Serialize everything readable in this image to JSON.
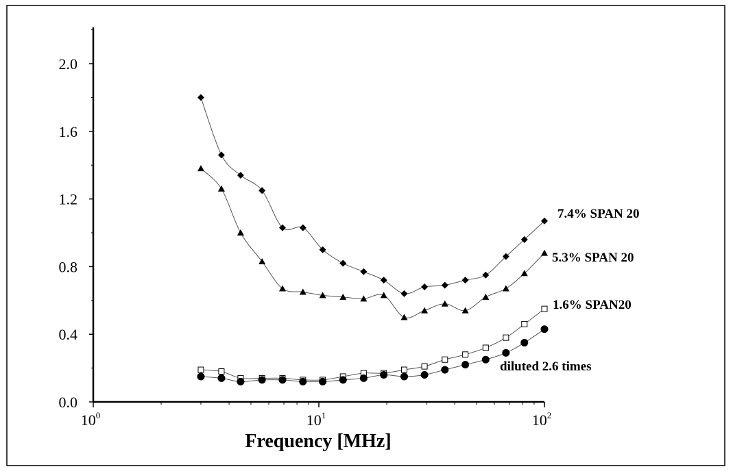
{
  "chart_data": {
    "type": "line",
    "xscale": "log",
    "xlim": [
      1,
      100
    ],
    "ylim": [
      0,
      2.2
    ],
    "xlabel": "Frequency [MHz]",
    "ylabel": "",
    "x_ticks": [
      {
        "base": "10",
        "exp": "0",
        "value": 1
      },
      {
        "base": "10",
        "exp": "1",
        "value": 10
      },
      {
        "base": "10",
        "exp": "2",
        "value": 100
      }
    ],
    "y_ticks": [
      "0.0",
      "0.4",
      "0.8",
      "1.2",
      "1.6",
      "2.0"
    ],
    "x": [
      3.0,
      3.7,
      4.5,
      5.6,
      6.9,
      8.5,
      10.4,
      12.8,
      15.8,
      19.4,
      23.9,
      29.4,
      36.2,
      44.6,
      54.9,
      67.5,
      81.5,
      100
    ],
    "series": [
      {
        "name": "7.4% SPAN 20",
        "marker": "diamond",
        "values": [
          1.8,
          1.46,
          1.34,
          1.25,
          1.03,
          1.03,
          0.9,
          0.82,
          0.77,
          0.72,
          0.64,
          0.68,
          0.69,
          0.72,
          0.75,
          0.86,
          0.96,
          1.07
        ]
      },
      {
        "name": "5.3% SPAN 20",
        "marker": "triangle",
        "values": [
          1.38,
          1.26,
          1.0,
          0.83,
          0.67,
          0.65,
          0.63,
          0.62,
          0.61,
          0.63,
          0.5,
          0.54,
          0.58,
          0.54,
          0.62,
          0.67,
          0.76,
          0.88
        ]
      },
      {
        "name": "1.6% SPAN20",
        "marker": "open-square",
        "values": [
          0.19,
          0.18,
          0.14,
          0.14,
          0.14,
          0.13,
          0.13,
          0.15,
          0.17,
          0.17,
          0.19,
          0.21,
          0.25,
          0.28,
          0.32,
          0.38,
          0.46,
          0.55
        ]
      },
      {
        "name": "diluted 2.6 times",
        "marker": "filled-circle",
        "values": [
          0.15,
          0.14,
          0.12,
          0.13,
          0.13,
          0.12,
          0.12,
          0.13,
          0.14,
          0.16,
          0.15,
          0.16,
          0.19,
          0.22,
          0.25,
          0.29,
          0.35,
          0.43
        ]
      }
    ],
    "grid": false
  }
}
